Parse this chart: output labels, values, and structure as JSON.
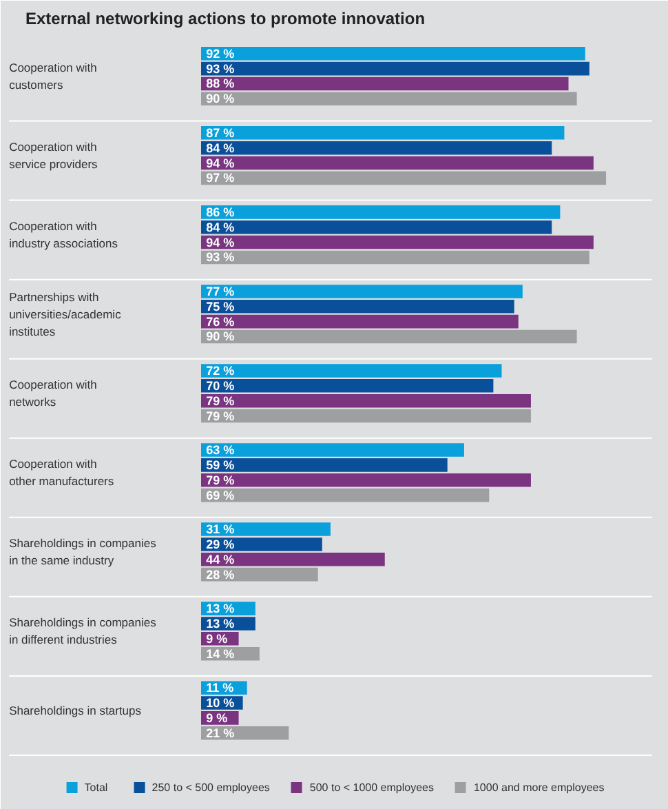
{
  "chart_data": {
    "type": "bar",
    "orientation": "horizontal",
    "title": "External networking actions to promote innovation",
    "categories": [
      "Cooperation with\ncustomers",
      "Cooperation with\nservice providers",
      "Cooperation with\nindustry associations",
      "Partnerships with\nuniversities/academic\ninstitutes",
      "Cooperation with\nnetworks",
      "Cooperation with\nother manufacturers",
      "Shareholdings in companies\nin the same industry",
      "Shareholdings in companies\nin different industries",
      "Shareholdings in startups"
    ],
    "series": [
      {
        "name": "Total",
        "color": "#0aa0dc",
        "values": [
          92,
          87,
          86,
          77,
          72,
          63,
          31,
          13,
          11
        ],
        "value_labels": [
          "92 %",
          "87 %",
          "86 %",
          "77 %",
          "72 %",
          "63 %",
          "31 %",
          "13 %",
          "11 %"
        ]
      },
      {
        "name": "250 to < 500 employees",
        "color": "#0a4f9a",
        "values": [
          93,
          84,
          84,
          75,
          70,
          59,
          29,
          13,
          10
        ],
        "value_labels": [
          "93 %",
          "84 %",
          "84 %",
          "75 %",
          "70 %",
          "59 %",
          "29 %",
          "13 %",
          "10 %"
        ]
      },
      {
        "name": "500 to < 1000 employees",
        "color": "#7a3480",
        "values": [
          88,
          94,
          94,
          76,
          79,
          79,
          44,
          9,
          9
        ],
        "value_labels": [
          "88 %",
          "94 %",
          "94 %",
          "76 %",
          "79 %",
          "79 %",
          "44 %",
          "9 %",
          "9 %"
        ]
      },
      {
        "name": "1000 and more employees",
        "color": "#9e9fa1",
        "values": [
          90,
          97,
          93,
          90,
          79,
          69,
          28,
          14,
          21
        ],
        "value_labels": [
          "90 %",
          "97 %",
          "93 %",
          "90 %",
          "79 %",
          "69 %",
          "28 %",
          "14 %",
          "21 %"
        ]
      }
    ],
    "legend": "bottom"
  }
}
